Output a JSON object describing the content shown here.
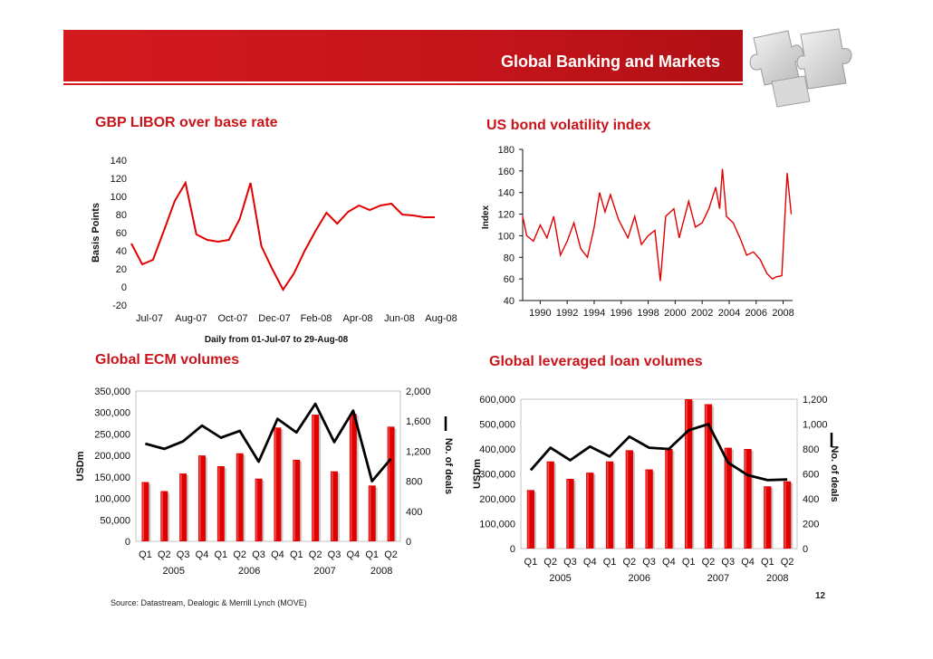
{
  "header": {
    "title": "Global Banking and Markets",
    "colors": {
      "brand": "#d41a1f",
      "series": "#e00000",
      "line": "#000000"
    },
    "logo_icon": "puzzle-icon"
  },
  "chart_data": [
    {
      "id": "libor",
      "type": "line",
      "title": "GBP LIBOR over base rate",
      "ylabel": "Basis Points",
      "xlabel": "",
      "caption": "Daily from  01-Jul-07 to 29-Aug-08",
      "ylim": [
        -20,
        140
      ],
      "yticks": [
        "140",
        "120",
        "100",
        "80",
        "60",
        "40",
        "20",
        "0",
        "-20"
      ],
      "xticks": [
        "Jul-07",
        "Aug-07",
        "Oct-07",
        "Dec-07",
        "Feb-08",
        "Apr-08",
        "Jun-08",
        "Aug-08"
      ],
      "x": [
        0,
        0.5,
        1,
        1.5,
        2,
        2.5,
        3,
        3.5,
        4,
        4.5,
        5,
        5.5,
        6,
        6.5,
        7,
        7.5,
        8,
        8.5,
        9,
        9.5,
        10,
        10.5,
        11,
        11.5,
        12,
        12.5,
        13,
        13.5,
        14
      ],
      "values": [
        48,
        25,
        30,
        62,
        95,
        115,
        58,
        52,
        50,
        52,
        75,
        115,
        45,
        20,
        -3,
        15,
        40,
        62,
        82,
        70,
        83,
        90,
        85,
        90,
        92,
        80,
        79,
        77,
        77
      ]
    },
    {
      "id": "move",
      "type": "line",
      "title": "US bond volatility index",
      "ylabel": "Index",
      "xlabel": "",
      "ylim": [
        40,
        180
      ],
      "yticks": [
        "180",
        "160",
        "140",
        "120",
        "100",
        "80",
        "60",
        "40"
      ],
      "xticks": [
        "1990",
        "1992",
        "1994",
        "1996",
        "1998",
        "2000",
        "2002",
        "2004",
        "2006",
        "2008"
      ],
      "x": [
        1988.7,
        1989,
        1989.5,
        1990,
        1990.5,
        1991,
        1991.5,
        1992,
        1992.5,
        1993,
        1993.5,
        1994,
        1994.4,
        1994.8,
        1995.2,
        1995.8,
        1996.5,
        1997,
        1997.5,
        1998,
        1998.5,
        1998.9,
        1999.3,
        1999.9,
        2000.3,
        2001,
        2001.5,
        2002,
        2002.5,
        2003,
        2003.3,
        2003.5,
        2003.8,
        2004.3,
        2004.8,
        2005.3,
        2005.8,
        2006.3,
        2006.8,
        2007.2,
        2007.5,
        2007.9,
        2008.3,
        2008.6
      ],
      "values": [
        118,
        100,
        95,
        110,
        98,
        118,
        82,
        95,
        112,
        88,
        80,
        108,
        140,
        122,
        138,
        115,
        98,
        118,
        92,
        100,
        105,
        58,
        118,
        125,
        98,
        132,
        108,
        112,
        125,
        145,
        125,
        162,
        118,
        112,
        98,
        82,
        85,
        78,
        65,
        60,
        62,
        63,
        158,
        120
      ]
    },
    {
      "id": "ecm",
      "type": "bar",
      "title": "Global ECM volumes",
      "ylabel": "USDm",
      "y2label": "No. of deals",
      "legend_icon": "line-legend-icon",
      "ylim": [
        0,
        350000
      ],
      "y2lim": [
        0,
        2000
      ],
      "yticks": [
        "350,000",
        "300,000",
        "250,000",
        "200,000",
        "150,000",
        "100,000",
        "50,000",
        "0"
      ],
      "y2ticks": [
        "2,000",
        "1,600",
        "1,200",
        "800",
        "400",
        "0"
      ],
      "categories": [
        "Q1",
        "Q2",
        "Q3",
        "Q4",
        "Q1",
        "Q2",
        "Q3",
        "Q4",
        "Q1",
        "Q2",
        "Q3",
        "Q4",
        "Q1",
        "Q2"
      ],
      "years": [
        "2005",
        "2006",
        "2007",
        "2008"
      ],
      "series": [
        {
          "name": "USDm",
          "values": [
            138000,
            117000,
            158000,
            200000,
            175000,
            205000,
            146000,
            265000,
            190000,
            295000,
            163000,
            297000,
            130000,
            267000
          ]
        },
        {
          "name": "No. of deals",
          "values": [
            1300,
            1230,
            1330,
            1540,
            1380,
            1470,
            1060,
            1630,
            1450,
            1830,
            1320,
            1740,
            800,
            1100
          ]
        }
      ]
    },
    {
      "id": "loan",
      "type": "bar",
      "title": "Global leveraged loan volumes",
      "ylabel": "USDm",
      "y2label": "No. of deals",
      "legend_icon": "line-legend-icon",
      "ylim": [
        0,
        600000
      ],
      "y2lim": [
        0,
        1200
      ],
      "yticks": [
        "600,000",
        "500,000",
        "400,000",
        "300,000",
        "200,000",
        "100,000",
        "0"
      ],
      "y2ticks": [
        "1,200",
        "1,000",
        "800",
        "600",
        "400",
        "200",
        "0"
      ],
      "categories": [
        "Q1",
        "Q2",
        "Q3",
        "Q4",
        "Q1",
        "Q2",
        "Q3",
        "Q4",
        "Q1",
        "Q2",
        "Q3",
        "Q4",
        "Q1",
        "Q2"
      ],
      "years": [
        "2005",
        "2006",
        "2007",
        "2008"
      ],
      "series": [
        {
          "name": "USDm",
          "values": [
            235000,
            350000,
            280000,
            305000,
            350000,
            395000,
            318000,
            400000,
            600000,
            580000,
            405000,
            400000,
            250000,
            270000
          ]
        },
        {
          "name": "No. of deals",
          "values": [
            630,
            810,
            710,
            820,
            740,
            900,
            810,
            800,
            950,
            1000,
            690,
            590,
            550,
            555
          ]
        }
      ]
    }
  ],
  "footer": {
    "source": "Source: Datastream, Dealogic & Merrill Lynch (MOVE)",
    "page_number": "12"
  }
}
